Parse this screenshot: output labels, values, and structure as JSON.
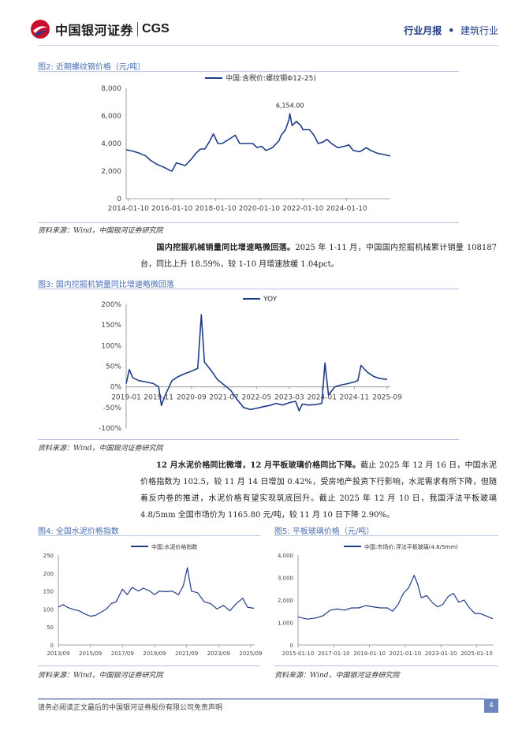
{
  "header": {
    "brand": "中国银河证券",
    "brand_en": "CGS",
    "report_type": "行业月报",
    "industry": "建筑行业"
  },
  "fig2": {
    "title": "图2: 近期螺纹钢价格（元/吨）",
    "source": "资料来源：Wind，中国银河证券研究院"
  },
  "para1": {
    "bold": "国内挖掘机械销量同比增速略微回落。",
    "text": "2025 年 1-11 月，中国国内挖掘机械累计销量 108187 台，同比上升 18.59%，较 1-10 月增速放缓 1.04pct。"
  },
  "fig3": {
    "title": "图3: 国内挖掘机销量同比增速略微回落",
    "source": "资料来源：Wind，中国银河证券研究院"
  },
  "para2": {
    "bold": "12 月水泥价格同比微增，12 月平板玻璃价格同比下降。",
    "text": "截止 2025 年 12 月 16 日，中国水泥价格指数为 102.5，较 11 月 14 日增加 0.42%，受房地产投资下行影响，水泥需求有所下降，但随着反内卷的推进，水泥价格有望实现筑底回升。截止 2025 年 12 月 10 日，我国浮法平板玻璃 4.8/5mm 全国市场价为 1165.80 元/吨，较 11 月 10 日下降 2.90%。"
  },
  "fig4": {
    "title": "图4: 全国水泥价格指数",
    "source": "资料来源：Wind，中国银河证券研究院"
  },
  "fig5": {
    "title": "图5: 平板玻璃价格（元/吨）",
    "source": "资料来源：Wind，中国银河证券研究院"
  },
  "footer": {
    "disclaimer": "请务必阅读正文最后的中国银河证券股份有限公司免责声明",
    "page": "4"
  },
  "colors": {
    "line": "#1f3c88",
    "title": "#4a6fb5"
  },
  "chart_data": [
    {
      "id": "rebar",
      "type": "line",
      "title": "",
      "legend": "中国:含税价:螺纹钢Φ12-25)",
      "legend_position": "top",
      "xlim": [
        2013.9,
        2026.0
      ],
      "ylim": [
        0,
        8000
      ],
      "yticks": [
        "0",
        "2,000",
        "4,000",
        "6,000",
        "8,000"
      ],
      "yticks_values": [
        0,
        2000,
        4000,
        6000,
        8000
      ],
      "xticks": [
        "2014-01-10",
        "2016-01-10",
        "2018-01-10",
        "2020-01-10",
        "2022-01-10",
        "2024-01-10"
      ],
      "xticks_values": [
        2014.0,
        2016.0,
        2018.0,
        2020.0,
        2022.0,
        2024.0
      ],
      "annotation": {
        "label": "6,154.00",
        "x": 2021.4,
        "y": 6154
      },
      "series": [
        {
          "x": [
            2013.9,
            2014.2,
            2014.5,
            2014.8,
            2015.0,
            2015.3,
            2015.6,
            2015.9,
            2016.0,
            2016.2,
            2016.4,
            2016.6,
            2016.9,
            2017.1,
            2017.3,
            2017.5,
            2017.7,
            2017.9,
            2018.1,
            2018.3,
            2018.6,
            2018.9,
            2019.1,
            2019.4,
            2019.7,
            2019.9,
            2020.1,
            2020.3,
            2020.6,
            2020.9,
            2021.0,
            2021.2,
            2021.35,
            2021.4,
            2021.5,
            2021.7,
            2021.9,
            2022.0,
            2022.3,
            2022.5,
            2022.7,
            2022.9,
            2023.1,
            2023.3,
            2023.6,
            2023.9,
            2024.1,
            2024.3,
            2024.6,
            2024.9,
            2025.1,
            2025.4,
            2025.7,
            2026.0
          ],
          "y": [
            3550,
            3450,
            3300,
            3100,
            2800,
            2500,
            2300,
            2050,
            2000,
            2600,
            2500,
            2400,
            2900,
            3300,
            3600,
            3600,
            4100,
            4700,
            4000,
            4000,
            4300,
            4600,
            4000,
            4000,
            4000,
            3700,
            3800,
            3500,
            3700,
            4200,
            4600,
            5000,
            5700,
            6154,
            5300,
            5600,
            5300,
            5000,
            5000,
            4600,
            4000,
            4100,
            4300,
            4000,
            3700,
            3800,
            3900,
            3500,
            3400,
            3700,
            3500,
            3300,
            3200,
            3100
          ]
        }
      ]
    },
    {
      "id": "excavator",
      "type": "line",
      "title": "",
      "legend": "YOY",
      "legend_position": "top",
      "xlim": [
        2019.0,
        2025.75
      ],
      "ylim": [
        -100,
        200
      ],
      "yticks": [
        "-100%",
        "-50%",
        "0%",
        "50%",
        "100%",
        "150%",
        "200%"
      ],
      "yticks_values": [
        -100,
        -50,
        0,
        50,
        100,
        150,
        200
      ],
      "xticks": [
        "2019-01",
        "2019-11",
        "2020-09",
        "2021-07",
        "2022-05",
        "2023-03",
        "2024-01",
        "2024-11",
        "2025-09"
      ],
      "xticks_values": [
        2019.0,
        2019.83,
        2020.67,
        2021.5,
        2022.33,
        2023.17,
        2024.0,
        2024.83,
        2025.67
      ],
      "series": [
        {
          "x": [
            2019.0,
            2019.08,
            2019.17,
            2019.33,
            2019.5,
            2019.7,
            2019.83,
            2019.9,
            2020.0,
            2020.17,
            2020.33,
            2020.5,
            2020.67,
            2020.83,
            2020.92,
            2021.0,
            2021.17,
            2021.33,
            2021.5,
            2021.67,
            2021.83,
            2022.0,
            2022.17,
            2022.33,
            2022.5,
            2022.67,
            2022.83,
            2023.0,
            2023.17,
            2023.33,
            2023.42,
            2023.5,
            2023.67,
            2023.83,
            2024.0,
            2024.08,
            2024.17,
            2024.33,
            2024.5,
            2024.67,
            2024.83,
            2024.92,
            2025.0,
            2025.17,
            2025.33,
            2025.5,
            2025.67
          ],
          "y": [
            8,
            42,
            22,
            15,
            12,
            8,
            0,
            -45,
            -20,
            15,
            25,
            32,
            38,
            45,
            175,
            60,
            40,
            18,
            5,
            -8,
            -30,
            -50,
            -55,
            -52,
            -48,
            -45,
            -40,
            -44,
            -38,
            -35,
            -58,
            -42,
            -44,
            -43,
            -40,
            58,
            -20,
            0,
            5,
            8,
            12,
            15,
            52,
            35,
            25,
            20,
            18
          ]
        }
      ]
    },
    {
      "id": "cement",
      "type": "line",
      "title": "",
      "legend": "中国:水泥价格指数",
      "legend_position": "top",
      "xlim": [
        2013.7,
        2025.95
      ],
      "ylim": [
        0,
        250
      ],
      "yticks": [
        "0",
        "50",
        "100",
        "150",
        "200",
        "250"
      ],
      "yticks_values": [
        0,
        50,
        100,
        150,
        200,
        250
      ],
      "xticks": [
        "2013/09",
        "2015/09",
        "2017/09",
        "2019/09",
        "2021/09",
        "2023/09",
        "2025/09"
      ],
      "xticks_values": [
        2013.7,
        2015.7,
        2017.7,
        2019.7,
        2021.7,
        2023.7,
        2025.7
      ],
      "series": [
        {
          "x": [
            2013.7,
            2014.0,
            2014.3,
            2014.7,
            2015.0,
            2015.4,
            2015.7,
            2016.0,
            2016.4,
            2016.7,
            2017.0,
            2017.3,
            2017.7,
            2018.0,
            2018.3,
            2018.7,
            2019.0,
            2019.4,
            2019.7,
            2020.0,
            2020.4,
            2020.8,
            2021.2,
            2021.5,
            2021.75,
            2022.0,
            2022.4,
            2022.8,
            2023.2,
            2023.6,
            2024.0,
            2024.4,
            2024.8,
            2025.2,
            2025.5,
            2025.9
          ],
          "y": [
            105,
            112,
            104,
            98,
            95,
            85,
            80,
            82,
            92,
            100,
            115,
            120,
            155,
            140,
            160,
            150,
            158,
            150,
            140,
            150,
            148,
            150,
            140,
            165,
            215,
            150,
            145,
            120,
            115,
            100,
            110,
            95,
            115,
            130,
            105,
            102
          ]
        }
      ]
    },
    {
      "id": "glass",
      "type": "line",
      "title": "",
      "legend": "中国:市场价:浮法平板玻璃(4.8/5mm)",
      "legend_position": "top",
      "xlim": [
        2015.0,
        2025.95
      ],
      "ylim": [
        0,
        4000
      ],
      "yticks": [
        "0",
        "1,000",
        "2,000",
        "3,000",
        "4,000"
      ],
      "yticks_values": [
        0,
        1000,
        2000,
        3000,
        4000
      ],
      "xticks": [
        "2015-01-10",
        "2017-01-10",
        "2019-01-10",
        "2021-01-10",
        "2023-01-10",
        "2025-01-10"
      ],
      "xticks_values": [
        2015.0,
        2017.0,
        2019.0,
        2021.0,
        2023.0,
        2025.0
      ],
      "series": [
        {
          "x": [
            2015.0,
            2015.5,
            2016.0,
            2016.4,
            2016.8,
            2017.2,
            2017.6,
            2018.0,
            2018.4,
            2018.8,
            2019.2,
            2019.6,
            2020.0,
            2020.3,
            2020.6,
            2020.9,
            2021.2,
            2021.5,
            2021.7,
            2021.9,
            2022.2,
            2022.5,
            2022.8,
            2023.1,
            2023.4,
            2023.7,
            2024.0,
            2024.3,
            2024.6,
            2024.9,
            2025.2,
            2025.5,
            2025.9
          ],
          "y": [
            1250,
            1150,
            1200,
            1300,
            1550,
            1600,
            1550,
            1650,
            1650,
            1750,
            1700,
            1650,
            1650,
            1500,
            1800,
            2300,
            2550,
            3100,
            2700,
            2100,
            2200,
            1900,
            1700,
            1800,
            2150,
            2300,
            1900,
            2000,
            1650,
            1400,
            1400,
            1300,
            1170
          ]
        }
      ]
    }
  ]
}
